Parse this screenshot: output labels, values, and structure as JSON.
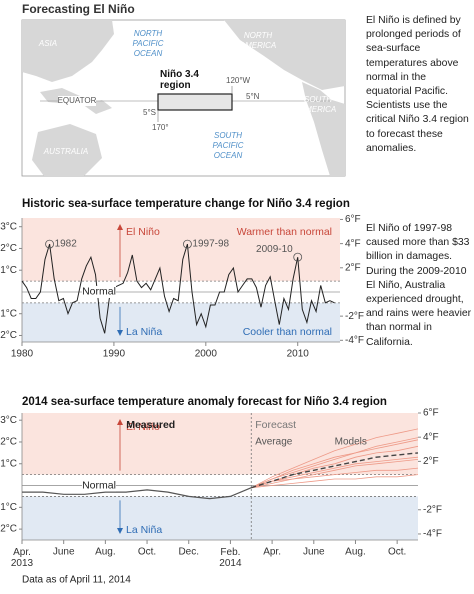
{
  "map": {
    "title": "Forecasting El Niño",
    "north_pacific": "NORTH\nPACIFIC\nOCEAN",
    "north_america": "NORTH\nAMERICA",
    "asia": "ASIA",
    "australia": "AUSTRALIA",
    "south_america": "SOUTH\nAMERICA",
    "south_pacific": "SOUTH\nPACIFIC\nOCEAN",
    "equator": "EQUATOR",
    "region": "Niño 3.4\nregion",
    "lon_east": "120°W",
    "lat_north": "5°N",
    "lat_south": "5°S",
    "lon_west": "170°",
    "description": "El Niño is defined by prolonged periods of sea-surface temperatures above normal in the equatorial Pacific. Scientists use the critical Niño 3.4 region to forecast these anomalies."
  },
  "chart_data": [
    {
      "type": "line",
      "title": "Historic sea-surface temperature change for Niño 3.4 region",
      "x": [
        1980,
        1980.5,
        1981,
        1981.5,
        1982,
        1982.5,
        1983,
        1983.5,
        1984,
        1984.5,
        1985,
        1985.5,
        1986,
        1986.5,
        1987,
        1987.5,
        1988,
        1988.5,
        1989,
        1989.5,
        1990,
        1990.5,
        1991,
        1991.5,
        1992,
        1992.5,
        1993,
        1993.5,
        1994,
        1994.5,
        1995,
        1995.5,
        1996,
        1996.5,
        1997,
        1997.5,
        1998,
        1998.5,
        1999,
        1999.5,
        2000,
        2000.5,
        2001,
        2001.5,
        2002,
        2002.5,
        2003,
        2003.5,
        2004,
        2004.5,
        2005,
        2005.5,
        2006,
        2006.5,
        2007,
        2007.5,
        2008,
        2008.5,
        2009,
        2009.5,
        2010,
        2010.5,
        2011,
        2011.5,
        2012,
        2012.5,
        2013,
        2013.5,
        2014
      ],
      "values": [
        0.5,
        0.2,
        -0.3,
        -0.3,
        0.0,
        1.5,
        2.2,
        0.6,
        -0.4,
        -0.3,
        -1.0,
        -0.5,
        -0.4,
        0.6,
        1.2,
        1.6,
        0.8,
        -1.2,
        -1.9,
        -0.3,
        0.2,
        0.3,
        0.4,
        0.9,
        1.7,
        0.5,
        0.2,
        0.4,
        0.1,
        0.6,
        1.1,
        -0.2,
        -0.9,
        -0.3,
        -0.4,
        1.5,
        2.2,
        0.0,
        -1.5,
        -1.0,
        -1.6,
        -0.6,
        -0.6,
        0.0,
        0.0,
        0.8,
        1.1,
        0.0,
        0.3,
        0.6,
        0.6,
        0.2,
        -0.7,
        0.3,
        0.7,
        -0.4,
        -1.5,
        -0.3,
        -0.8,
        0.6,
        1.6,
        -0.8,
        -1.4,
        -0.4,
        -0.9,
        0.3,
        -0.5,
        -0.4,
        -0.5
      ],
      "color": "#222222",
      "xlim": [
        1980,
        2014.6
      ],
      "xticks": [
        1980,
        1990,
        2000,
        2010
      ],
      "ylim": [
        -2.3,
        3.4
      ],
      "yticks": [
        {
          "value": 3,
          "label": "3°C"
        },
        {
          "value": 2,
          "label": "2°C"
        },
        {
          "value": 1,
          "label": "1°C"
        },
        {
          "value": -1,
          "label": "-1°C"
        },
        {
          "value": -2,
          "label": "-2°C"
        }
      ],
      "y2lim": [
        -4.14,
        6.12
      ],
      "y2ticks": [
        {
          "value": 6,
          "label": "6°F"
        },
        {
          "value": 4,
          "label": "4°F"
        },
        {
          "value": 2,
          "label": "2°F"
        },
        {
          "value": -2,
          "label": "-2°F"
        },
        {
          "value": -4,
          "label": "-4°F"
        }
      ],
      "threshold_lines": [
        0.5,
        -0.5
      ],
      "normal": {
        "label": "Normal",
        "value": 0
      },
      "warm_color": "#c8473a",
      "cool_color": "#2f6db5",
      "warm_band": "#fbe4de",
      "cool_band": "#e1e9f3",
      "labels": {
        "el_nino": "El Niño",
        "la_nina": "La Niña",
        "warmer": "Warmer than normal",
        "cooler": "Cooler than normal"
      },
      "annotations": [
        {
          "x": 1983,
          "y": 2.2,
          "label": "1982"
        },
        {
          "x": 1998,
          "y": 2.2,
          "label": "1997-98"
        },
        {
          "x": 2010,
          "y": 1.6,
          "label": "2009-10"
        }
      ],
      "note": "El Niño of 1997-98 caused more than $33 billion in damages. During the 2009-2010 El Niño, Australia experienced drought, and rains were heavier than normal in California."
    },
    {
      "type": "line",
      "title": "2014 sea-surface temperature anomaly forecast for Niño 3.4 region",
      "xlim": [
        "2013-04",
        "2014-11"
      ],
      "xticks": [
        {
          "value": "2013-04",
          "label": "Apr.\n2013"
        },
        {
          "value": "2013-06",
          "label": "June"
        },
        {
          "value": "2013-08",
          "label": "Aug."
        },
        {
          "value": "2013-10",
          "label": "Oct."
        },
        {
          "value": "2013-12",
          "label": "Dec."
        },
        {
          "value": "2014-02",
          "label": "Feb.\n2014"
        },
        {
          "value": "2014-04",
          "label": "Apr."
        },
        {
          "value": "2014-06",
          "label": "June"
        },
        {
          "value": "2014-08",
          "label": "Aug."
        },
        {
          "value": "2014-10",
          "label": "Oct."
        }
      ],
      "ylim": [
        -2.5,
        3.33
      ],
      "yticks": [
        {
          "value": 3,
          "label": "3°C"
        },
        {
          "value": 2,
          "label": "2°C"
        },
        {
          "value": 1,
          "label": "1°C"
        },
        {
          "value": -1,
          "label": "-1°C"
        },
        {
          "value": -2,
          "label": "-2°C"
        }
      ],
      "y2lim": [
        -4.5,
        6.0
      ],
      "y2ticks": [
        {
          "value": 6,
          "label": "6°F"
        },
        {
          "value": 4,
          "label": "4°F"
        },
        {
          "value": 2,
          "label": "2°F"
        },
        {
          "value": -2,
          "label": "-2°F"
        },
        {
          "value": -4,
          "label": "-4°F"
        }
      ],
      "threshold_lines": [
        0.5,
        -0.5
      ],
      "normal": {
        "label": "Normal",
        "value": 0
      },
      "warm_color": "#c8473a",
      "cool_color": "#2f6db5",
      "warm_band": "#fbe4de",
      "cool_band": "#e1e9f3",
      "labels": {
        "el_nino": "El Niño",
        "la_nina": "La Niña",
        "forecast": "Forecast"
      },
      "forecast_start": "2014-03",
      "series": [
        {
          "name": "Measured",
          "color": "#555555",
          "x": [
            "2013-04",
            "2013-05",
            "2013-06",
            "2013-07",
            "2013-08",
            "2013-09",
            "2013-10",
            "2013-11",
            "2013-12",
            "2014-01",
            "2014-02",
            "2014-03"
          ],
          "values": [
            -0.3,
            -0.3,
            -0.4,
            -0.4,
            -0.3,
            -0.3,
            -0.2,
            -0.3,
            -0.5,
            -0.6,
            -0.5,
            -0.1
          ]
        },
        {
          "name": "Average",
          "color": "#444444",
          "x": [
            "2014-03",
            "2014-04",
            "2014-05",
            "2014-06",
            "2014-07",
            "2014-08",
            "2014-09",
            "2014-10",
            "2014-11"
          ],
          "values": [
            -0.1,
            0.2,
            0.5,
            0.7,
            0.9,
            1.1,
            1.3,
            1.4,
            1.5
          ]
        }
      ],
      "models": {
        "name": "Models",
        "color": "#ee9a88",
        "x": [
          "2014-03",
          "2014-04",
          "2014-05",
          "2014-06",
          "2014-07",
          "2014-08",
          "2014-09",
          "2014-10",
          "2014-11"
        ],
        "values": [
          [
            -0.1,
            0.2,
            0.4,
            0.6,
            0.8,
            1.0,
            1.1,
            1.2,
            1.3
          ],
          [
            -0.1,
            0.3,
            0.6,
            0.9,
            1.2,
            1.5,
            1.7,
            1.9,
            2.1
          ],
          [
            -0.1,
            0.1,
            0.3,
            0.4,
            0.5,
            0.6,
            0.7,
            0.7,
            0.8
          ],
          [
            -0.1,
            0.4,
            0.8,
            1.2,
            1.6,
            1.9,
            2.2,
            2.4,
            2.6
          ],
          [
            -0.1,
            0.2,
            0.5,
            0.8,
            1.0,
            1.3,
            1.5,
            1.6,
            1.8
          ],
          [
            -0.1,
            0.0,
            0.1,
            0.2,
            0.3,
            0.3,
            0.4,
            0.4,
            0.5
          ],
          [
            -0.1,
            0.3,
            0.7,
            1.0,
            1.3,
            1.5,
            1.8,
            2.0,
            2.2
          ],
          [
            -0.1,
            0.2,
            0.3,
            0.5,
            0.7,
            0.9,
            1.0,
            1.1,
            1.2
          ]
        ]
      }
    }
  ],
  "footer": "Data as of April 11, 2014"
}
